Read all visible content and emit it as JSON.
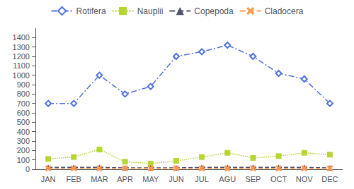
{
  "chart_data": {
    "type": "line",
    "categories": [
      "JAN",
      "FEB",
      "MAR",
      "APR",
      "MAY",
      "JUN",
      "JUL",
      "AGU",
      "SEP",
      "OCT",
      "NOV",
      "DEC"
    ],
    "series": [
      {
        "name": "Rotifera",
        "values": [
          700,
          700,
          1000,
          800,
          880,
          1200,
          1250,
          1320,
          1200,
          1020,
          960,
          700
        ],
        "marker": "diamond",
        "line_style": "dashdot"
      },
      {
        "name": "Nauplii",
        "values": [
          110,
          130,
          210,
          80,
          60,
          90,
          130,
          175,
          120,
          140,
          175,
          155
        ],
        "marker": "square",
        "line_style": "dotted"
      },
      {
        "name": "Copepoda",
        "values": [
          20,
          20,
          20,
          15,
          15,
          15,
          20,
          20,
          20,
          20,
          20,
          15
        ],
        "marker": "triangle",
        "line_style": "dashed"
      },
      {
        "name": "Cladocera",
        "values": [
          10,
          10,
          10,
          10,
          10,
          10,
          10,
          10,
          10,
          10,
          10,
          10
        ],
        "marker": "x",
        "line_style": "dashed"
      }
    ],
    "ylim": [
      0,
      1500
    ],
    "yticks": [
      0,
      100,
      200,
      300,
      400,
      500,
      600,
      700,
      800,
      900,
      1000,
      1100,
      1200,
      1300,
      1400
    ],
    "grid": false,
    "legend": "top"
  }
}
